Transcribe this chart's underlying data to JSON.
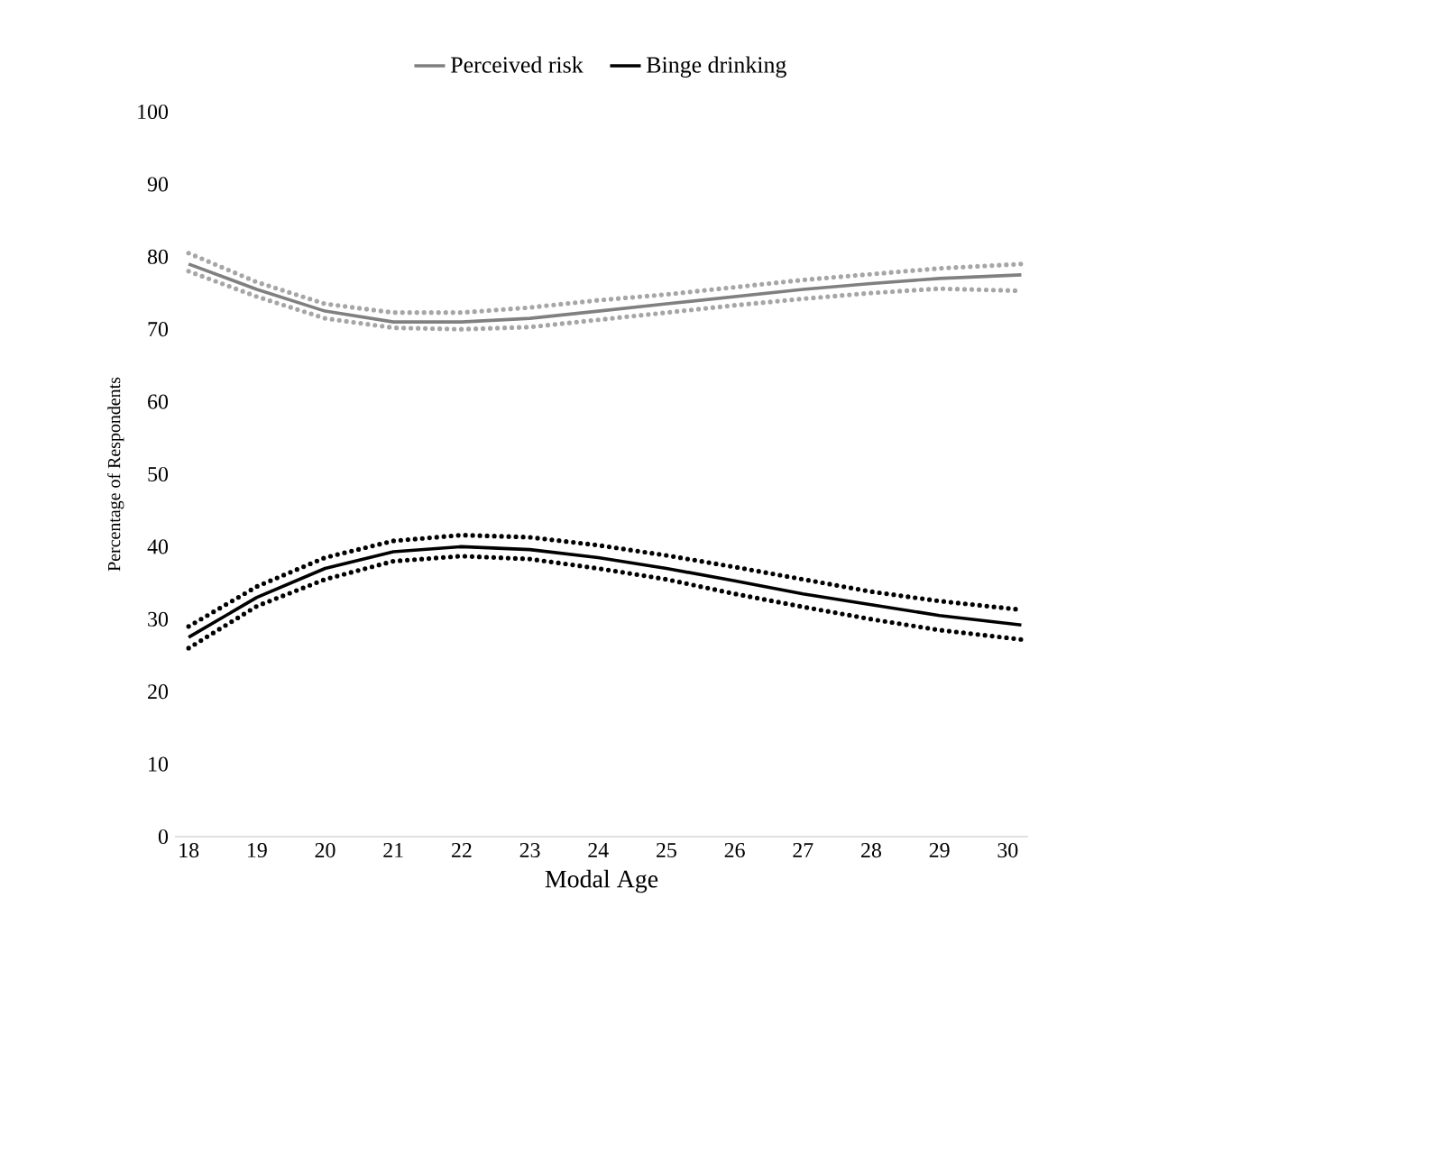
{
  "chart_data": {
    "type": "line",
    "xlabel": "Modal Age",
    "ylabel": "Percentage of Respondents",
    "xlim": [
      17.8,
      30.3
    ],
    "xticks": [
      18,
      19,
      20,
      21,
      22,
      23,
      24,
      25,
      26,
      27,
      28,
      29,
      30
    ],
    "ylim": [
      0,
      100
    ],
    "yticks": [
      0,
      10,
      20,
      30,
      40,
      50,
      60,
      70,
      80,
      90,
      100
    ],
    "x": [
      18,
      19,
      20,
      21,
      22,
      23,
      24,
      25,
      26,
      27,
      28,
      29,
      30.2
    ],
    "legend": "top",
    "grid": false,
    "marker": "none",
    "series": [
      {
        "name": "Perceived risk",
        "color": "#808080",
        "line_style": "solid",
        "values": [
          79,
          75.5,
          72.5,
          71,
          71,
          71.5,
          72.5,
          73.5,
          74.5,
          75.5,
          76.3,
          77,
          77.5
        ]
      },
      {
        "color": "#a6a6a6",
        "line_style": "dotted",
        "values": [
          80.5,
          76.5,
          73.5,
          72.3,
          72.3,
          73,
          74,
          74.8,
          75.8,
          76.8,
          77.6,
          78.4,
          79
        ]
      },
      {
        "color": "#a6a6a6",
        "line_style": "dotted",
        "values": [
          78,
          74.5,
          71.5,
          70.2,
          70,
          70.3,
          71.3,
          72.3,
          73.3,
          74.2,
          75,
          75.6,
          75.3
        ]
      },
      {
        "name": "Binge drinking",
        "color": "#000000",
        "line_style": "solid",
        "values": [
          27.5,
          33,
          37,
          39.3,
          40,
          39.6,
          38.5,
          37,
          35.3,
          33.5,
          32,
          30.5,
          29.2
        ]
      },
      {
        "color": "#000000",
        "line_style": "dotted",
        "values": [
          29,
          34.5,
          38.5,
          40.8,
          41.6,
          41.3,
          40.2,
          38.8,
          37.2,
          35.5,
          33.8,
          32.5,
          31.3
        ]
      },
      {
        "color": "#000000",
        "line_style": "dotted",
        "values": [
          26,
          31.8,
          35.5,
          38,
          38.7,
          38.3,
          37,
          35.5,
          33.5,
          31.7,
          30,
          28.5,
          27.2
        ]
      }
    ]
  }
}
